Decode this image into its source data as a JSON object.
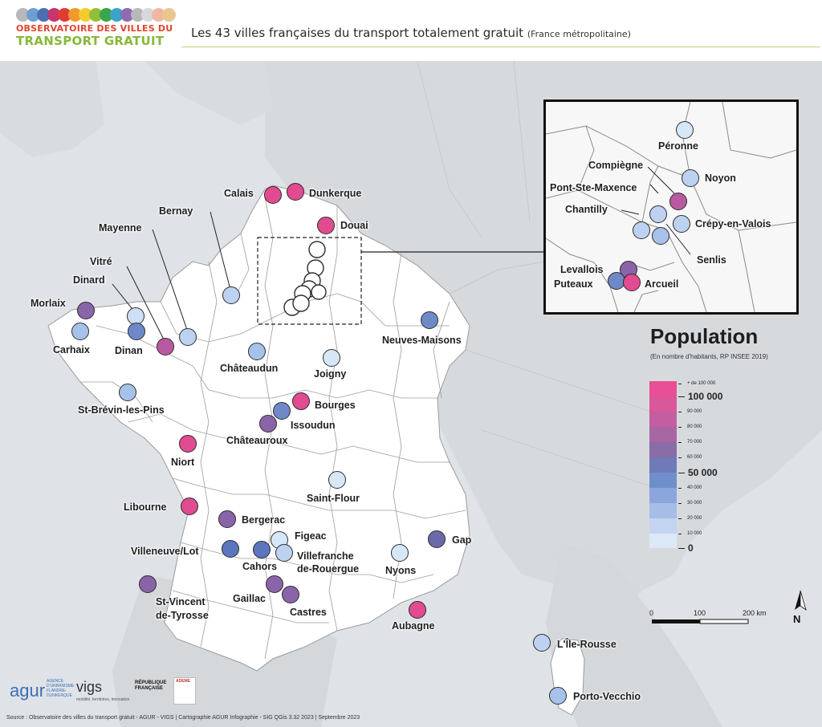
{
  "header": {
    "logo_line1": "OBSERVATOIRE DES VILLES DU",
    "logo_line2": "TRANSPORT GRATUIT",
    "title": "Les 43 villes françaises du transport totalement gratuit",
    "title_suffix": "(France métropolitaine)"
  },
  "legend": {
    "title": "Population",
    "subtitle": "(En nombre d'habitants, RP INSEE 2019)",
    "ticks_major": [
      "100 000",
      "50 000",
      "0"
    ],
    "ticks_minor": [
      "+ de 100 000",
      "90 000",
      "80 000",
      "70 000",
      "60 000",
      "40 000",
      "30 000",
      "20 000",
      "10 000"
    ],
    "colors": [
      "#e84f94",
      "#d9579b",
      "#c45ea0",
      "#a866a3",
      "#8a6ca7",
      "#6f7ab8",
      "#6f8fcc",
      "#8aa6dc",
      "#a6bde7",
      "#c2d4f0",
      "#dde8f7"
    ]
  },
  "scale": {
    "labels": [
      "0",
      "100",
      "200 km"
    ]
  },
  "north": "N",
  "cities": [
    {
      "name": "Calais",
      "color": "#e14b8f"
    },
    {
      "name": "Dunkerque",
      "color": "#e14b8f"
    },
    {
      "name": "Douai",
      "color": "#e14b8f"
    },
    {
      "name": "Bernay",
      "color": "#bcd2f0"
    },
    {
      "name": "Mayenne",
      "color": "#bcd2f0"
    },
    {
      "name": "Vitré",
      "color": "#b95aa0"
    },
    {
      "name": "Dinard",
      "color": "#cfe0f5"
    },
    {
      "name": "Morlaix",
      "color": "#8a64a8"
    },
    {
      "name": "Carhaix",
      "color": "#a6c2ea"
    },
    {
      "name": "Dinan",
      "color": "#6f88c8"
    },
    {
      "name": "Châteaudun",
      "color": "#a6c2ea"
    },
    {
      "name": "Joigny",
      "color": "#d6e7f8"
    },
    {
      "name": "Neuves-Maisons",
      "color": "#6f88c8"
    },
    {
      "name": "St-Brévin-les-Pins",
      "color": "#a6c2ea"
    },
    {
      "name": "Bourges",
      "color": "#e14b8f"
    },
    {
      "name": "Issoudun",
      "color": "#6f88c8"
    },
    {
      "name": "Châteauroux",
      "color": "#8a64a8"
    },
    {
      "name": "Niort",
      "color": "#e14b8f"
    },
    {
      "name": "Saint-Flour",
      "color": "#d6e7f8"
    },
    {
      "name": "Libourne",
      "color": "#e14b8f"
    },
    {
      "name": "Bergerac",
      "color": "#8a64a8"
    },
    {
      "name": "Figeac",
      "color": "#d6e7f8"
    },
    {
      "name": "Villefranche de-Rouergue",
      "color": "#bcd2f0"
    },
    {
      "name": "Villeneuve/Lot",
      "color": "#5a76c0"
    },
    {
      "name": "Cahors",
      "color": "#5a76c0"
    },
    {
      "name": "Gap",
      "color": "#6b6aa8"
    },
    {
      "name": "Nyons",
      "color": "#d6e7f8"
    },
    {
      "name": "St-Vincent de-Tyrosse",
      "color": "#8a64a8"
    },
    {
      "name": "Gaillac",
      "color": "#8a64a8"
    },
    {
      "name": "Castres",
      "color": "#8a64a8"
    },
    {
      "name": "Aubagne",
      "color": "#e14b8f"
    },
    {
      "name": "L'Île-Rousse",
      "color": "#bcd2f0"
    },
    {
      "name": "Porto-Vecchio",
      "color": "#a6c2ea"
    }
  ],
  "inset_cities": [
    {
      "name": "Péronne",
      "color": "#d6e7f8"
    },
    {
      "name": "Compiègne",
      "color": "#b95aa0"
    },
    {
      "name": "Noyon",
      "color": "#bcd2f0"
    },
    {
      "name": "Pont-Ste-Maxence",
      "color": "#bcd2f0"
    },
    {
      "name": "Chantilly",
      "color": "#bcd2f0"
    },
    {
      "name": "Crépy-en-Valois",
      "color": "#bcd2f0"
    },
    {
      "name": "Senlis",
      "color": "#a6c2ea"
    },
    {
      "name": "Levallois",
      "color": "#8a64a8"
    },
    {
      "name": "Puteaux",
      "color": "#6f88c8"
    },
    {
      "name": "Arcueil",
      "color": "#e14b8f"
    }
  ],
  "source": "Source : Observatoire des villes du transport gratuit - AGUR - VIGS | Cartographie AGUR Infographie - SIG QGis 3.32 2023 | Septembre 2023",
  "logos": {
    "agur": "agur",
    "agur_small": "AGENCE D'URBANISME FLANDRE-DUNKERQUE",
    "vigs": "vigs",
    "vigs_sub": "mobilité, territoires, innovation",
    "republique": "RÉPUBLIQUE FRANÇAISE",
    "ademe": "ADEME"
  }
}
